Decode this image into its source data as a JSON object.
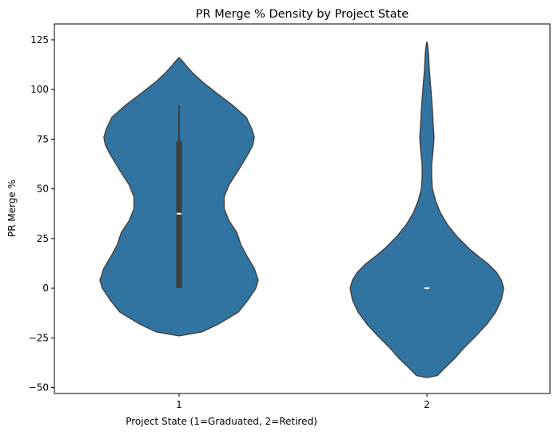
{
  "chart_data": {
    "type": "violin",
    "title": "PR Merge % Density by Project State",
    "xlabel": "Project State (1=Graduated, 2=Retired)",
    "ylabel": "PR Merge %",
    "categories": [
      "1",
      "2"
    ],
    "ylim": [
      -53,
      133
    ],
    "yticks": [
      -50,
      -25,
      0,
      25,
      50,
      75,
      100,
      125
    ],
    "ytick_labels": [
      "−50",
      "−25",
      "0",
      "25",
      "50",
      "75",
      "100",
      "125"
    ],
    "grid": false,
    "colors": {
      "fill": "#3274a1",
      "edge": "#3f3f3f",
      "box": "#3f3f3f",
      "median": "#ffffff"
    },
    "violins": [
      {
        "category": "1",
        "density_profile": [
          [
            -24,
            0.0
          ],
          [
            -22,
            0.29
          ],
          [
            -18,
            0.5
          ],
          [
            -12,
            0.75
          ],
          [
            -6,
            0.87
          ],
          [
            0,
            0.97
          ],
          [
            4,
            1.0
          ],
          [
            10,
            0.95
          ],
          [
            16,
            0.86
          ],
          [
            22,
            0.78
          ],
          [
            28,
            0.73
          ],
          [
            34,
            0.63
          ],
          [
            40,
            0.57
          ],
          [
            46,
            0.57
          ],
          [
            52,
            0.63
          ],
          [
            60,
            0.76
          ],
          [
            68,
            0.88
          ],
          [
            72,
            0.93
          ],
          [
            76,
            0.95
          ],
          [
            80,
            0.92
          ],
          [
            86,
            0.85
          ],
          [
            92,
            0.68
          ],
          [
            98,
            0.48
          ],
          [
            104,
            0.29
          ],
          [
            108,
            0.18
          ],
          [
            112,
            0.09
          ],
          [
            114,
            0.05
          ],
          [
            116,
            0.0
          ]
        ],
        "box": {
          "q1": 0,
          "median": 37.5,
          "q3": 74,
          "whisker_low": 0,
          "whisker_high": 92
        }
      },
      {
        "category": "2",
        "density_profile": [
          [
            -45,
            0.0
          ],
          [
            -44,
            0.13
          ],
          [
            -40,
            0.23
          ],
          [
            -35,
            0.36
          ],
          [
            -30,
            0.47
          ],
          [
            -24,
            0.62
          ],
          [
            -18,
            0.76
          ],
          [
            -12,
            0.87
          ],
          [
            -6,
            0.94
          ],
          [
            0,
            0.97
          ],
          [
            4,
            0.94
          ],
          [
            8,
            0.88
          ],
          [
            12,
            0.78
          ],
          [
            16,
            0.65
          ],
          [
            20,
            0.53
          ],
          [
            26,
            0.38
          ],
          [
            32,
            0.26
          ],
          [
            38,
            0.17
          ],
          [
            44,
            0.11
          ],
          [
            50,
            0.07
          ],
          [
            56,
            0.06
          ],
          [
            62,
            0.06
          ],
          [
            66,
            0.07
          ],
          [
            70,
            0.08
          ],
          [
            76,
            0.09
          ],
          [
            82,
            0.08
          ],
          [
            90,
            0.07
          ],
          [
            100,
            0.05
          ],
          [
            110,
            0.03
          ],
          [
            118,
            0.02
          ],
          [
            122,
            0.01
          ],
          [
            124,
            0.0
          ]
        ],
        "box": {
          "q1": 0,
          "median": 0,
          "q3": 0,
          "whisker_low": 0,
          "whisker_high": 0
        }
      }
    ]
  }
}
